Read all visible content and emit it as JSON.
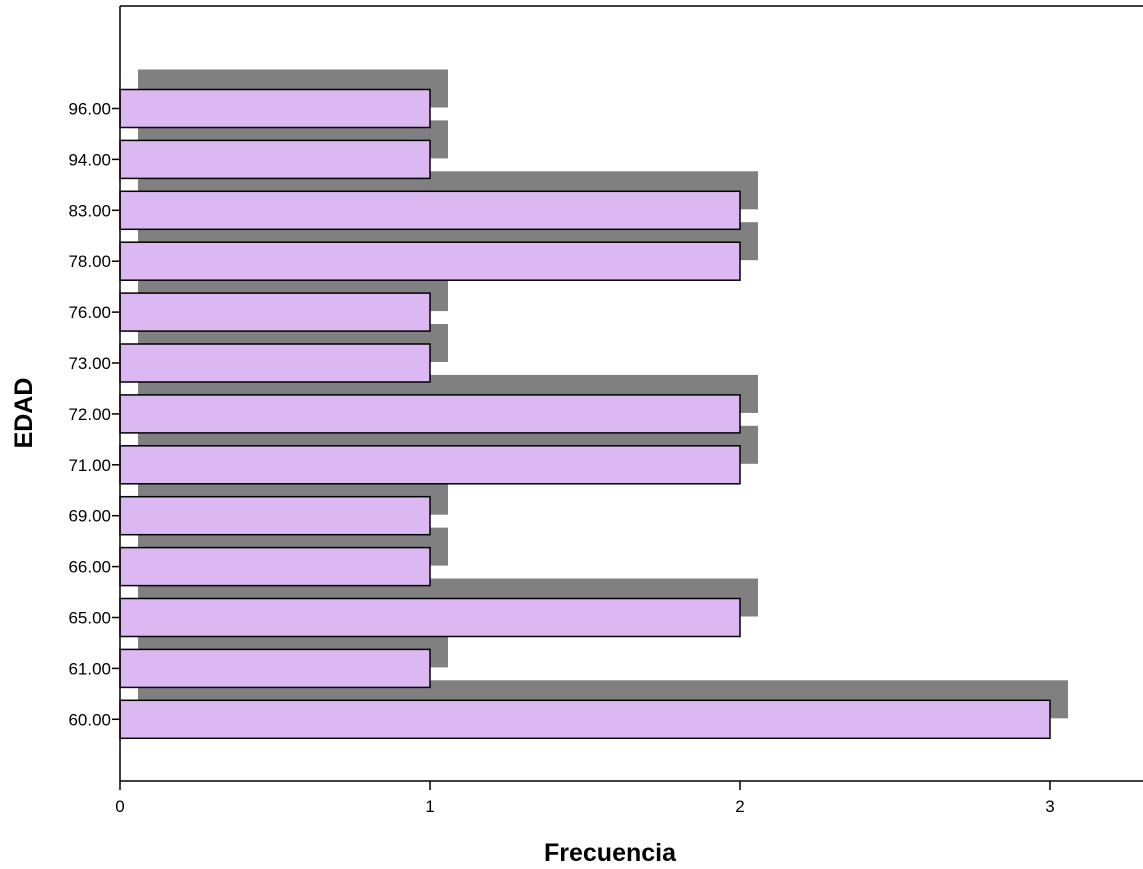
{
  "chart_data": {
    "type": "bar",
    "orientation": "horizontal",
    "title": "",
    "xlabel": "Frecuencia",
    "ylabel": "EDAD",
    "categories": [
      "96.00",
      "94.00",
      "83.00",
      "78.00",
      "76.00",
      "73.00",
      "72.00",
      "71.00",
      "69.00",
      "66.00",
      "65.00",
      "61.00",
      "60.00"
    ],
    "values": [
      1,
      1,
      2,
      2,
      1,
      1,
      2,
      2,
      1,
      1,
      2,
      1,
      3
    ],
    "x_ticks": [
      "0",
      "1",
      "2",
      "3"
    ],
    "xlim": [
      0,
      3.3
    ],
    "grid": false,
    "bar_style": "3d-shadow",
    "colors": {
      "bar_fill": "#dcb8f2",
      "bar_stroke": "#000000",
      "shadow": "#808080",
      "axis": "#000000"
    }
  }
}
